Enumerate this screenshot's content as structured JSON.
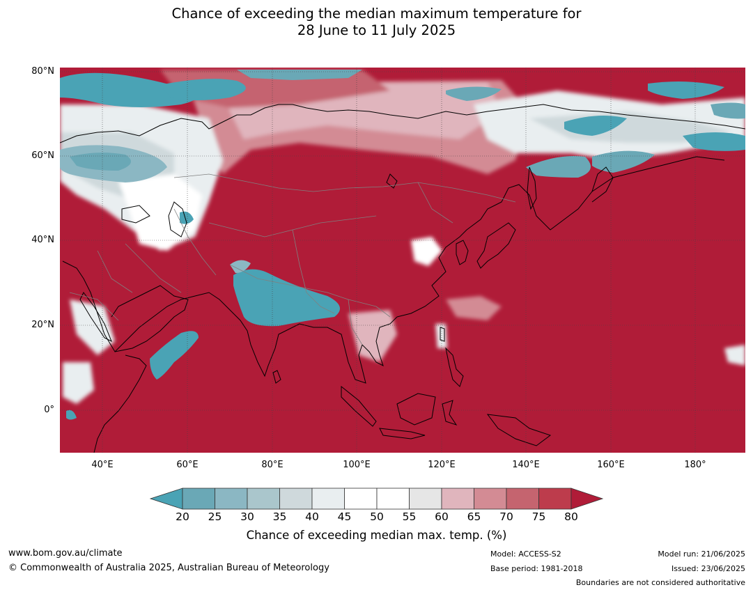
{
  "title": {
    "line1": "Chance of exceeding the median maximum temperature for",
    "line2": "28 June to 11 July 2025"
  },
  "map": {
    "lat_labels": [
      "80°N",
      "60°N",
      "40°N",
      "20°N",
      "0°"
    ],
    "lon_labels": [
      "40°E",
      "60°E",
      "80°E",
      "100°E",
      "120°E",
      "140°E",
      "160°E",
      "180°"
    ],
    "extent": {
      "lon": [
        30,
        192
      ],
      "lat": [
        -10,
        80
      ]
    },
    "background_color": "#b01c38",
    "colors": {
      "dominant_high": "#b01c38",
      "low": "#4aa3b5",
      "neutral": "#e8eef1"
    },
    "regions": {
      "high_chance": "Southern Asia, China, Indian Ocean, Pacific, Middle East",
      "low_chance": "Western Siberia, Kara Sea, northern India, Horn of Africa coast",
      "near_median": "Central Russia, Central Asia, eastern Siberia"
    }
  },
  "colorbar": {
    "ticks": [
      "20",
      "25",
      "30",
      "35",
      "40",
      "45",
      "50",
      "55",
      "60",
      "65",
      "70",
      "75",
      "80"
    ],
    "colors": [
      "#4aa3b5",
      "#6aa8b6",
      "#8bb7c3",
      "#aac6cc",
      "#cfd9dc",
      "#e9eef0",
      "#ffffff",
      "#ffffff",
      "#e6e6e6",
      "#e0b5bd",
      "#d38b94",
      "#c5646f",
      "#bd3c4c",
      "#b01c38"
    ],
    "label": "Chance of exceeding median max. temp. (%)"
  },
  "footer": {
    "url": "www.bom.gov.au/climate",
    "copyright": "© Commonwealth of Australia 2025, Australian Bureau of Meteorology",
    "model": "Model: ACCESS-S2",
    "base_period": "Base period: 1981-2018",
    "model_run": "Model run: 21/06/2025",
    "issued": "Issued: 23/06/2025",
    "boundaries": "Boundaries are not considered authoritative"
  }
}
